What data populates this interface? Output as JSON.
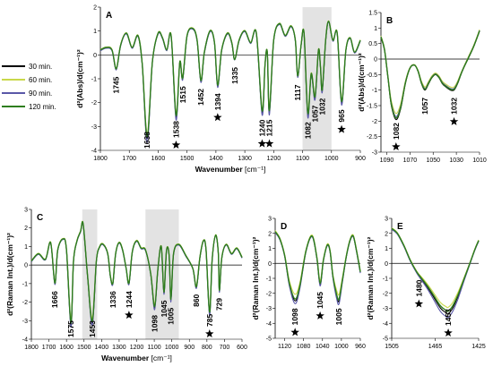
{
  "legend": {
    "entries": [
      {
        "label": "30  min.",
        "color": "#000000"
      },
      {
        "label": "60  min.",
        "color": "#c9d84a"
      },
      {
        "label": "90  min.",
        "color": "#5a58a8"
      },
      {
        "label": "120  min.",
        "color": "#2e7d1e"
      }
    ]
  },
  "chart_data": [
    {
      "panel": "A",
      "type": "line",
      "xlabel": "Wavenumber",
      "xunit": "[cm⁻¹]",
      "ylabel": "d²(Abs)/d(cm⁻¹)²",
      "xlim": [
        1800,
        900
      ],
      "ylim": [
        -4,
        2
      ],
      "x_reversed": true,
      "xticks": [
        1800,
        1700,
        1600,
        1500,
        1400,
        1300,
        1200,
        1100,
        1000,
        900
      ],
      "yticks": [
        2,
        1,
        0,
        -1,
        -2,
        -3,
        -4
      ],
      "shaded_region": [
        1100,
        1000
      ],
      "baseline": [
        [
          1800,
          0.2
        ],
        [
          1780,
          0.3
        ],
        [
          1760,
          0.2
        ],
        [
          1745,
          -0.6
        ],
        [
          1730,
          0.4
        ],
        [
          1710,
          0.9
        ],
        [
          1690,
          0.3
        ],
        [
          1670,
          0.8
        ],
        [
          1655,
          -0.4
        ],
        [
          1638,
          -3.5
        ],
        [
          1620,
          -0.3
        ],
        [
          1600,
          0.9
        ],
        [
          1585,
          0.7
        ],
        [
          1570,
          0.2
        ],
        [
          1555,
          0.8
        ],
        [
          1538,
          -2.6
        ],
        [
          1525,
          -0.3
        ],
        [
          1515,
          -1.0
        ],
        [
          1500,
          0.8
        ],
        [
          1480,
          1.1
        ],
        [
          1465,
          0.6
        ],
        [
          1452,
          -1.1
        ],
        [
          1440,
          0.1
        ],
        [
          1420,
          1.0
        ],
        [
          1405,
          0.5
        ],
        [
          1394,
          -1.3
        ],
        [
          1380,
          0.2
        ],
        [
          1360,
          0.9
        ],
        [
          1345,
          0.5
        ],
        [
          1335,
          -0.2
        ],
        [
          1320,
          0.6
        ],
        [
          1300,
          1.0
        ],
        [
          1280,
          0.5
        ],
        [
          1260,
          0.9
        ],
        [
          1240,
          -2.4
        ],
        [
          1230,
          -0.4
        ],
        [
          1222,
          0.1
        ],
        [
          1215,
          -2.4
        ],
        [
          1200,
          0.6
        ],
        [
          1180,
          1.3
        ],
        [
          1160,
          0.8
        ],
        [
          1140,
          1.2
        ],
        [
          1125,
          0.6
        ],
        [
          1117,
          -0.9
        ],
        [
          1105,
          0.4
        ],
        [
          1095,
          0.9
        ],
        [
          1082,
          -2.5
        ],
        [
          1070,
          -0.8
        ],
        [
          1057,
          -1.8
        ],
        [
          1045,
          0.2
        ],
        [
          1038,
          -0.5
        ],
        [
          1032,
          -1.5
        ],
        [
          1020,
          0.6
        ],
        [
          1010,
          1.4
        ],
        [
          995,
          0.6
        ],
        [
          980,
          0.9
        ],
        [
          965,
          -2.0
        ],
        [
          950,
          0.2
        ],
        [
          935,
          0.7
        ],
        [
          920,
          0.1
        ],
        [
          900,
          0.6
        ]
      ],
      "series_offsets": [
        0,
        0.12,
        -0.1,
        0.05
      ],
      "peak_labels": [
        {
          "text": "1745",
          "x": 1745
        },
        {
          "text": "1638",
          "x": 1638
        },
        {
          "text": "1538",
          "x": 1538,
          "star": true
        },
        {
          "text": "1515",
          "x": 1515
        },
        {
          "text": "1452",
          "x": 1452
        },
        {
          "text": "1394",
          "x": 1394,
          "star": true
        },
        {
          "text": "1335",
          "x": 1335
        },
        {
          "text": "1240",
          "x": 1240,
          "star": true
        },
        {
          "text": "1215",
          "x": 1215,
          "star": true
        },
        {
          "text": "1117",
          "x": 1117
        },
        {
          "text": "1082",
          "x": 1082
        },
        {
          "text": "1057",
          "x": 1057
        },
        {
          "text": "1032",
          "x": 1032
        },
        {
          "text": "965",
          "x": 965,
          "star": true
        }
      ]
    },
    {
      "panel": "B",
      "type": "line",
      "ylabel": "d²(Abs)/d(cm⁻¹)²",
      "xlim": [
        1095,
        1010
      ],
      "ylim": [
        -3,
        1.5
      ],
      "x_reversed": true,
      "xticks": [
        1090,
        1070,
        1050,
        1030,
        1010
      ],
      "yticks": [
        1.5,
        1,
        0.5,
        0,
        -0.5,
        -1,
        -1.5,
        -2,
        -2.5,
        -3
      ],
      "baseline": [
        [
          1095,
          0.7
        ],
        [
          1092,
          0.3
        ],
        [
          1089,
          -0.6
        ],
        [
          1086,
          -1.5
        ],
        [
          1082,
          -1.95
        ],
        [
          1078,
          -1.6
        ],
        [
          1074,
          -0.8
        ],
        [
          1070,
          -0.3
        ],
        [
          1066,
          -0.2
        ],
        [
          1063,
          -0.4
        ],
        [
          1060,
          -0.8
        ],
        [
          1057,
          -1.0
        ],
        [
          1054,
          -0.8
        ],
        [
          1051,
          -0.6
        ],
        [
          1048,
          -0.5
        ],
        [
          1045,
          -0.6
        ],
        [
          1042,
          -0.8
        ],
        [
          1039,
          -0.9
        ],
        [
          1035,
          -1.0
        ],
        [
          1032,
          -1.0
        ],
        [
          1029,
          -0.8
        ],
        [
          1025,
          -0.4
        ],
        [
          1020,
          0.0
        ],
        [
          1015,
          0.4
        ],
        [
          1010,
          0.9
        ]
      ],
      "series_offsets": [
        0,
        0.2,
        0.1,
        0.05
      ],
      "peak_labels": [
        {
          "text": "1082",
          "x": 1082,
          "star": true
        },
        {
          "text": "1057",
          "x": 1057
        },
        {
          "text": "1032",
          "x": 1032,
          "star": true
        }
      ]
    },
    {
      "panel": "C",
      "type": "line",
      "xlabel": "Wavenumber",
      "xunit": "[cm⁻¹]",
      "ylabel": "d²(Raman Int.)/d(cm⁻¹)²",
      "xlim": [
        1800,
        600
      ],
      "ylim": [
        -4,
        3
      ],
      "x_reversed": true,
      "xticks": [
        1800,
        1700,
        1600,
        1500,
        1400,
        1300,
        1200,
        1100,
        1000,
        900,
        800,
        700,
        600
      ],
      "yticks": [
        3,
        2,
        1,
        0,
        -1,
        -2,
        -3,
        -4
      ],
      "shaded_regions": [
        [
          1510,
          1425
        ],
        [
          1150,
          960
        ]
      ],
      "baseline": [
        [
          1800,
          0.2
        ],
        [
          1760,
          0.6
        ],
        [
          1720,
          0.3
        ],
        [
          1690,
          1.2
        ],
        [
          1666,
          -1.0
        ],
        [
          1650,
          0.8
        ],
        [
          1620,
          1.4
        ],
        [
          1600,
          0.8
        ],
        [
          1575,
          -3.2
        ],
        [
          1560,
          0.2
        ],
        [
          1540,
          1.3
        ],
        [
          1520,
          1.8
        ],
        [
          1505,
          2.2
        ],
        [
          1480,
          -0.6
        ],
        [
          1453,
          -3.1
        ],
        [
          1430,
          0.2
        ],
        [
          1410,
          1.0
        ],
        [
          1390,
          1.1
        ],
        [
          1365,
          0.6
        ],
        [
          1350,
          -0.6
        ],
        [
          1336,
          -1.0
        ],
        [
          1320,
          0.6
        ],
        [
          1300,
          1.2
        ],
        [
          1280,
          0.8
        ],
        [
          1260,
          -0.2
        ],
        [
          1244,
          -1.0
        ],
        [
          1225,
          0.7
        ],
        [
          1200,
          1.3
        ],
        [
          1175,
          0.9
        ],
        [
          1150,
          0.8
        ],
        [
          1120,
          -0.5
        ],
        [
          1098,
          -2.3
        ],
        [
          1080,
          -0.3
        ],
        [
          1060,
          1.0
        ],
        [
          1045,
          -1.5
        ],
        [
          1030,
          0.8
        ],
        [
          1015,
          0.5
        ],
        [
          1005,
          -1.9
        ],
        [
          990,
          0.6
        ],
        [
          960,
          1.1
        ],
        [
          920,
          0.5
        ],
        [
          880,
          -0.2
        ],
        [
          860,
          -1.2
        ],
        [
          840,
          0.4
        ],
        [
          820,
          1.3
        ],
        [
          805,
          0.8
        ],
        [
          785,
          -2.6
        ],
        [
          770,
          0.3
        ],
        [
          750,
          1.6
        ],
        [
          735,
          0.6
        ],
        [
          729,
          -1.4
        ],
        [
          715,
          0.4
        ],
        [
          690,
          1.1
        ],
        [
          660,
          0.6
        ],
        [
          630,
          0.9
        ],
        [
          600,
          0.4
        ]
      ],
      "series_offsets": [
        0,
        0.15,
        -0.1,
        0.05
      ],
      "peak_labels": [
        {
          "text": "1666",
          "x": 1666
        },
        {
          "text": "1575",
          "x": 1575
        },
        {
          "text": "1453",
          "x": 1453
        },
        {
          "text": "1336",
          "x": 1336
        },
        {
          "text": "1244",
          "x": 1244,
          "star": true
        },
        {
          "text": "1098",
          "x": 1098
        },
        {
          "text": "1045",
          "x": 1045
        },
        {
          "text": "1005",
          "x": 1005
        },
        {
          "text": "860",
          "x": 860
        },
        {
          "text": "785",
          "x": 785,
          "star": true
        },
        {
          "text": "729",
          "x": 729
        }
      ]
    },
    {
      "panel": "D",
      "type": "line",
      "ylabel": "d²(Raman Int.)/d(cm⁻¹)²",
      "xlim": [
        1140,
        960
      ],
      "ylim": [
        -5,
        3
      ],
      "x_reversed": true,
      "xticks": [
        1120,
        1080,
        1040,
        1000,
        960
      ],
      "yticks": [
        3,
        2,
        1,
        0,
        -1,
        -2,
        -3,
        -4,
        -5
      ],
      "baseline": [
        [
          1140,
          2.1
        ],
        [
          1130,
          1.6
        ],
        [
          1120,
          0.5
        ],
        [
          1110,
          -1.4
        ],
        [
          1098,
          -2.5
        ],
        [
          1088,
          -1.6
        ],
        [
          1075,
          0.8
        ],
        [
          1062,
          1.8
        ],
        [
          1052,
          0.4
        ],
        [
          1045,
          -1.4
        ],
        [
          1038,
          0.2
        ],
        [
          1030,
          1.2
        ],
        [
          1024,
          0.8
        ],
        [
          1018,
          -0.9
        ],
        [
          1010,
          -2.2
        ],
        [
          1005,
          -2.5
        ],
        [
          998,
          -1.2
        ],
        [
          990,
          0.4
        ],
        [
          982,
          1.5
        ],
        [
          975,
          1.8
        ],
        [
          968,
          0.8
        ],
        [
          960,
          -0.6
        ]
      ],
      "series_offsets": [
        0,
        0.35,
        -0.15,
        0.1
      ],
      "peak_labels": [
        {
          "text": "1098",
          "x": 1098,
          "star": true
        },
        {
          "text": "1045",
          "x": 1045,
          "star": true
        },
        {
          "text": "1005",
          "x": 1005
        }
      ]
    },
    {
      "panel": "E",
      "type": "line",
      "ylabel": "d²(Raman Int.)/d(cm⁻¹)²",
      "xlim": [
        1505,
        1425
      ],
      "ylim": [
        -5,
        3
      ],
      "x_reversed": true,
      "xticks": [
        1505,
        1465,
        1425
      ],
      "yticks": [
        3,
        2,
        1,
        0,
        -1,
        -2,
        -3,
        -4,
        -5
      ],
      "baseline": [
        [
          1505,
          2.3
        ],
        [
          1500,
          2.0
        ],
        [
          1494,
          1.2
        ],
        [
          1488,
          0.2
        ],
        [
          1482,
          -0.6
        ],
        [
          1478,
          -1.0
        ],
        [
          1472,
          -1.6
        ],
        [
          1466,
          -2.3
        ],
        [
          1460,
          -3.0
        ],
        [
          1455,
          -3.3
        ],
        [
          1453,
          -3.35
        ],
        [
          1449,
          -3.0
        ],
        [
          1444,
          -2.2
        ],
        [
          1438,
          -1.0
        ],
        [
          1432,
          0.2
        ],
        [
          1428,
          1.0
        ],
        [
          1425,
          1.5
        ]
      ],
      "series_offsets": [
        0,
        0.25,
        -0.15,
        0.1
      ],
      "peak_labels": [
        {
          "text": "1480",
          "x": 1480,
          "star": true
        },
        {
          "text": "1453",
          "x": 1453,
          "star": true
        }
      ]
    }
  ]
}
